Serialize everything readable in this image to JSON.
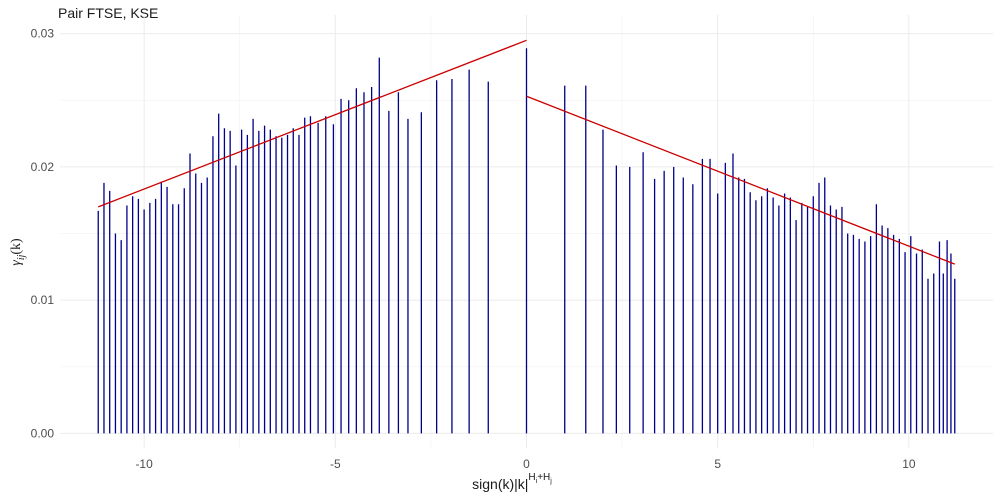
{
  "chart_data": {
    "type": "bar",
    "title": "Pair FTSE, KSE",
    "xlabel": "sign(k)|k|^(H_i+H_j)",
    "ylabel": "γ_ij(k)",
    "xlim": [
      -12.2,
      12.2
    ],
    "ylim": [
      -0.0011,
      0.0314
    ],
    "x_ticks": [
      -10,
      -5,
      0,
      5,
      10
    ],
    "x_tick_labels": [
      "-10",
      "-5",
      "0",
      "5",
      "10"
    ],
    "y_ticks": [
      0.0,
      0.01,
      0.02,
      0.03
    ],
    "y_tick_labels": [
      "0.00",
      "0.01",
      "0.02",
      "0.03"
    ],
    "grid": true,
    "colors": {
      "bars": "#00008b",
      "fit": "#cc0000",
      "text": "#1a1a1a",
      "ticks": "#4d4d4d"
    },
    "series": [
      {
        "values": [
          {
            "x": -11.2,
            "y": 0.0167
          },
          {
            "x": -11.05,
            "y": 0.0188
          },
          {
            "x": -10.9,
            "y": 0.0182
          },
          {
            "x": -10.75,
            "y": 0.015
          },
          {
            "x": -10.6,
            "y": 0.0145
          },
          {
            "x": -10.45,
            "y": 0.0171
          },
          {
            "x": -10.3,
            "y": 0.0178
          },
          {
            "x": -10.15,
            "y": 0.0176
          },
          {
            "x": -10.0,
            "y": 0.0168
          },
          {
            "x": -9.85,
            "y": 0.0173
          },
          {
            "x": -9.7,
            "y": 0.0176
          },
          {
            "x": -9.55,
            "y": 0.0189
          },
          {
            "x": -9.4,
            "y": 0.0185
          },
          {
            "x": -9.25,
            "y": 0.0172
          },
          {
            "x": -9.1,
            "y": 0.0172
          },
          {
            "x": -8.95,
            "y": 0.0184
          },
          {
            "x": -8.8,
            "y": 0.021
          },
          {
            "x": -8.65,
            "y": 0.0195
          },
          {
            "x": -8.5,
            "y": 0.0188
          },
          {
            "x": -8.35,
            "y": 0.0192
          },
          {
            "x": -8.2,
            "y": 0.0223
          },
          {
            "x": -8.05,
            "y": 0.024
          },
          {
            "x": -7.9,
            "y": 0.0229
          },
          {
            "x": -7.75,
            "y": 0.0227
          },
          {
            "x": -7.6,
            "y": 0.0201
          },
          {
            "x": -7.45,
            "y": 0.0228
          },
          {
            "x": -7.3,
            "y": 0.0224
          },
          {
            "x": -7.15,
            "y": 0.0236
          },
          {
            "x": -7.0,
            "y": 0.0227
          },
          {
            "x": -6.85,
            "y": 0.0231
          },
          {
            "x": -6.7,
            "y": 0.0228
          },
          {
            "x": -6.55,
            "y": 0.0223
          },
          {
            "x": -6.4,
            "y": 0.0222
          },
          {
            "x": -6.25,
            "y": 0.0224
          },
          {
            "x": -6.1,
            "y": 0.0229
          },
          {
            "x": -5.95,
            "y": 0.0224
          },
          {
            "x": -5.8,
            "y": 0.0237
          },
          {
            "x": -5.65,
            "y": 0.0238
          },
          {
            "x": -5.45,
            "y": 0.0233
          },
          {
            "x": -5.25,
            "y": 0.0238
          },
          {
            "x": -5.05,
            "y": 0.0232
          },
          {
            "x": -4.85,
            "y": 0.0251
          },
          {
            "x": -4.65,
            "y": 0.025
          },
          {
            "x": -4.45,
            "y": 0.0259
          },
          {
            "x": -4.25,
            "y": 0.0256
          },
          {
            "x": -4.05,
            "y": 0.026
          },
          {
            "x": -3.85,
            "y": 0.0282
          },
          {
            "x": -3.6,
            "y": 0.0242
          },
          {
            "x": -3.35,
            "y": 0.0256
          },
          {
            "x": -3.1,
            "y": 0.0236
          },
          {
            "x": -2.75,
            "y": 0.0241
          },
          {
            "x": -2.35,
            "y": 0.0265
          },
          {
            "x": -1.95,
            "y": 0.0266
          },
          {
            "x": -1.5,
            "y": 0.0273
          },
          {
            "x": -1.0,
            "y": 0.0264
          },
          {
            "x": 0.0,
            "y": 0.0289
          },
          {
            "x": 1.0,
            "y": 0.0261
          },
          {
            "x": 1.55,
            "y": 0.0261
          },
          {
            "x": 2.0,
            "y": 0.0228
          },
          {
            "x": 2.35,
            "y": 0.0201
          },
          {
            "x": 2.7,
            "y": 0.02
          },
          {
            "x": 3.05,
            "y": 0.0211
          },
          {
            "x": 3.35,
            "y": 0.0191
          },
          {
            "x": 3.6,
            "y": 0.0197
          },
          {
            "x": 3.85,
            "y": 0.02
          },
          {
            "x": 4.1,
            "y": 0.0192
          },
          {
            "x": 4.35,
            "y": 0.0187
          },
          {
            "x": 4.6,
            "y": 0.0206
          },
          {
            "x": 4.8,
            "y": 0.0206
          },
          {
            "x": 5.0,
            "y": 0.018
          },
          {
            "x": 5.2,
            "y": 0.0203
          },
          {
            "x": 5.4,
            "y": 0.021
          },
          {
            "x": 5.55,
            "y": 0.0192
          },
          {
            "x": 5.7,
            "y": 0.0191
          },
          {
            "x": 5.85,
            "y": 0.0181
          },
          {
            "x": 6.0,
            "y": 0.0175
          },
          {
            "x": 6.15,
            "y": 0.0178
          },
          {
            "x": 6.3,
            "y": 0.0184
          },
          {
            "x": 6.45,
            "y": 0.0177
          },
          {
            "x": 6.6,
            "y": 0.0171
          },
          {
            "x": 6.75,
            "y": 0.018
          },
          {
            "x": 6.9,
            "y": 0.0177
          },
          {
            "x": 7.05,
            "y": 0.016
          },
          {
            "x": 7.2,
            "y": 0.0173
          },
          {
            "x": 7.35,
            "y": 0.017
          },
          {
            "x": 7.5,
            "y": 0.0178
          },
          {
            "x": 7.65,
            "y": 0.0188
          },
          {
            "x": 7.8,
            "y": 0.0192
          },
          {
            "x": 7.95,
            "y": 0.0171
          },
          {
            "x": 8.1,
            "y": 0.0168
          },
          {
            "x": 8.25,
            "y": 0.017
          },
          {
            "x": 8.4,
            "y": 0.015
          },
          {
            "x": 8.55,
            "y": 0.0149
          },
          {
            "x": 8.7,
            "y": 0.0146
          },
          {
            "x": 8.85,
            "y": 0.0144
          },
          {
            "x": 9.0,
            "y": 0.0148
          },
          {
            "x": 9.15,
            "y": 0.0172
          },
          {
            "x": 9.3,
            "y": 0.0156
          },
          {
            "x": 9.45,
            "y": 0.0154
          },
          {
            "x": 9.6,
            "y": 0.0149
          },
          {
            "x": 9.75,
            "y": 0.0146
          },
          {
            "x": 9.9,
            "y": 0.0136
          },
          {
            "x": 10.05,
            "y": 0.0148
          },
          {
            "x": 10.2,
            "y": 0.0135
          },
          {
            "x": 10.35,
            "y": 0.0138
          },
          {
            "x": 10.5,
            "y": 0.0116
          },
          {
            "x": 10.65,
            "y": 0.012
          },
          {
            "x": 10.8,
            "y": 0.0144
          },
          {
            "x": 10.9,
            "y": 0.012
          },
          {
            "x": 11.0,
            "y": 0.0145
          },
          {
            "x": 11.1,
            "y": 0.0135
          },
          {
            "x": 11.2,
            "y": 0.0116
          }
        ]
      }
    ],
    "fit_lines": [
      {
        "x": [
          -11.2,
          0.0
        ],
        "y": [
          0.017,
          0.0295
        ]
      },
      {
        "x": [
          0.0,
          11.2
        ],
        "y": [
          0.0253,
          0.0127
        ]
      }
    ]
  }
}
